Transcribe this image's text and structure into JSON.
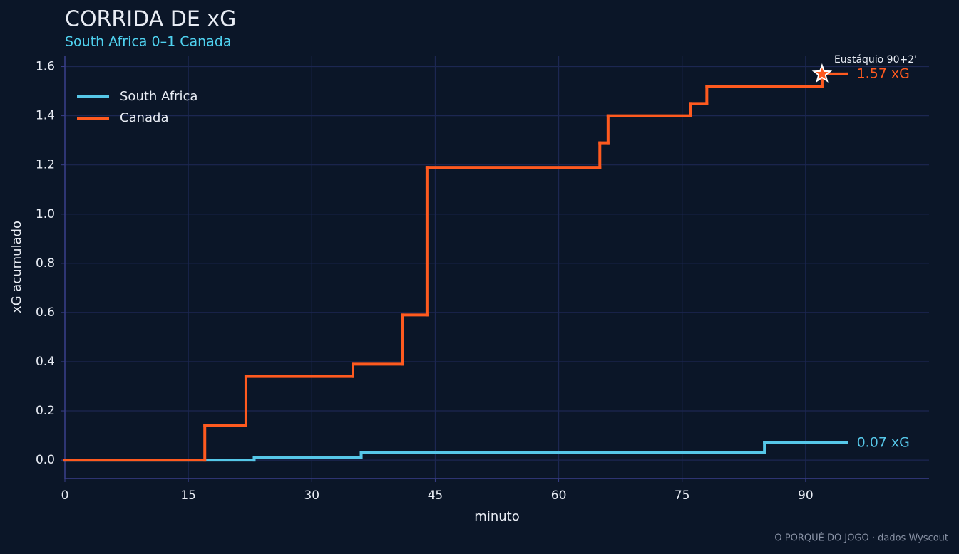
{
  "chart_data": {
    "type": "step",
    "title": "CORRIDA DE xG",
    "subtitle": "South Africa 0–1 Canada",
    "x_label": "minuto",
    "y_label": "xG acumulado",
    "footer": "O PORQUÊ DO JOGO · dados Wyscout",
    "xlim": [
      0,
      105
    ],
    "ylim": [
      -0.075,
      1.645
    ],
    "xticks": [
      0,
      15,
      30,
      45,
      60,
      75,
      90
    ],
    "yticks": [
      {
        "value": 0,
        "label": "0.0"
      },
      0.2,
      0.4,
      0.6,
      0.8,
      {
        "value": 1,
        "label": "1.0"
      },
      1.2,
      1.4,
      1.6
    ],
    "grid": true,
    "legend": "upper left",
    "series": [
      {
        "name": "South Africa",
        "color": "#56c7e8",
        "x": [
          0,
          23,
          36,
          85,
          95
        ],
        "values": [
          0,
          0.01,
          0.03,
          0.07,
          0.07
        ],
        "end_label": "0.07 xG"
      },
      {
        "name": "Canada",
        "color": "#ff5a1f",
        "x": [
          0,
          17,
          22,
          35,
          41,
          44,
          65,
          66,
          76,
          78,
          92,
          95
        ],
        "values": [
          0,
          0.14,
          0.34,
          0.39,
          0.59,
          1.19,
          1.29,
          1.4,
          1.45,
          1.52,
          1.57,
          1.57
        ],
        "end_label": "1.57 xG"
      }
    ],
    "annotation": {
      "text": "Eustáquio 90+2'",
      "x": 92,
      "y": 1.57
    }
  }
}
